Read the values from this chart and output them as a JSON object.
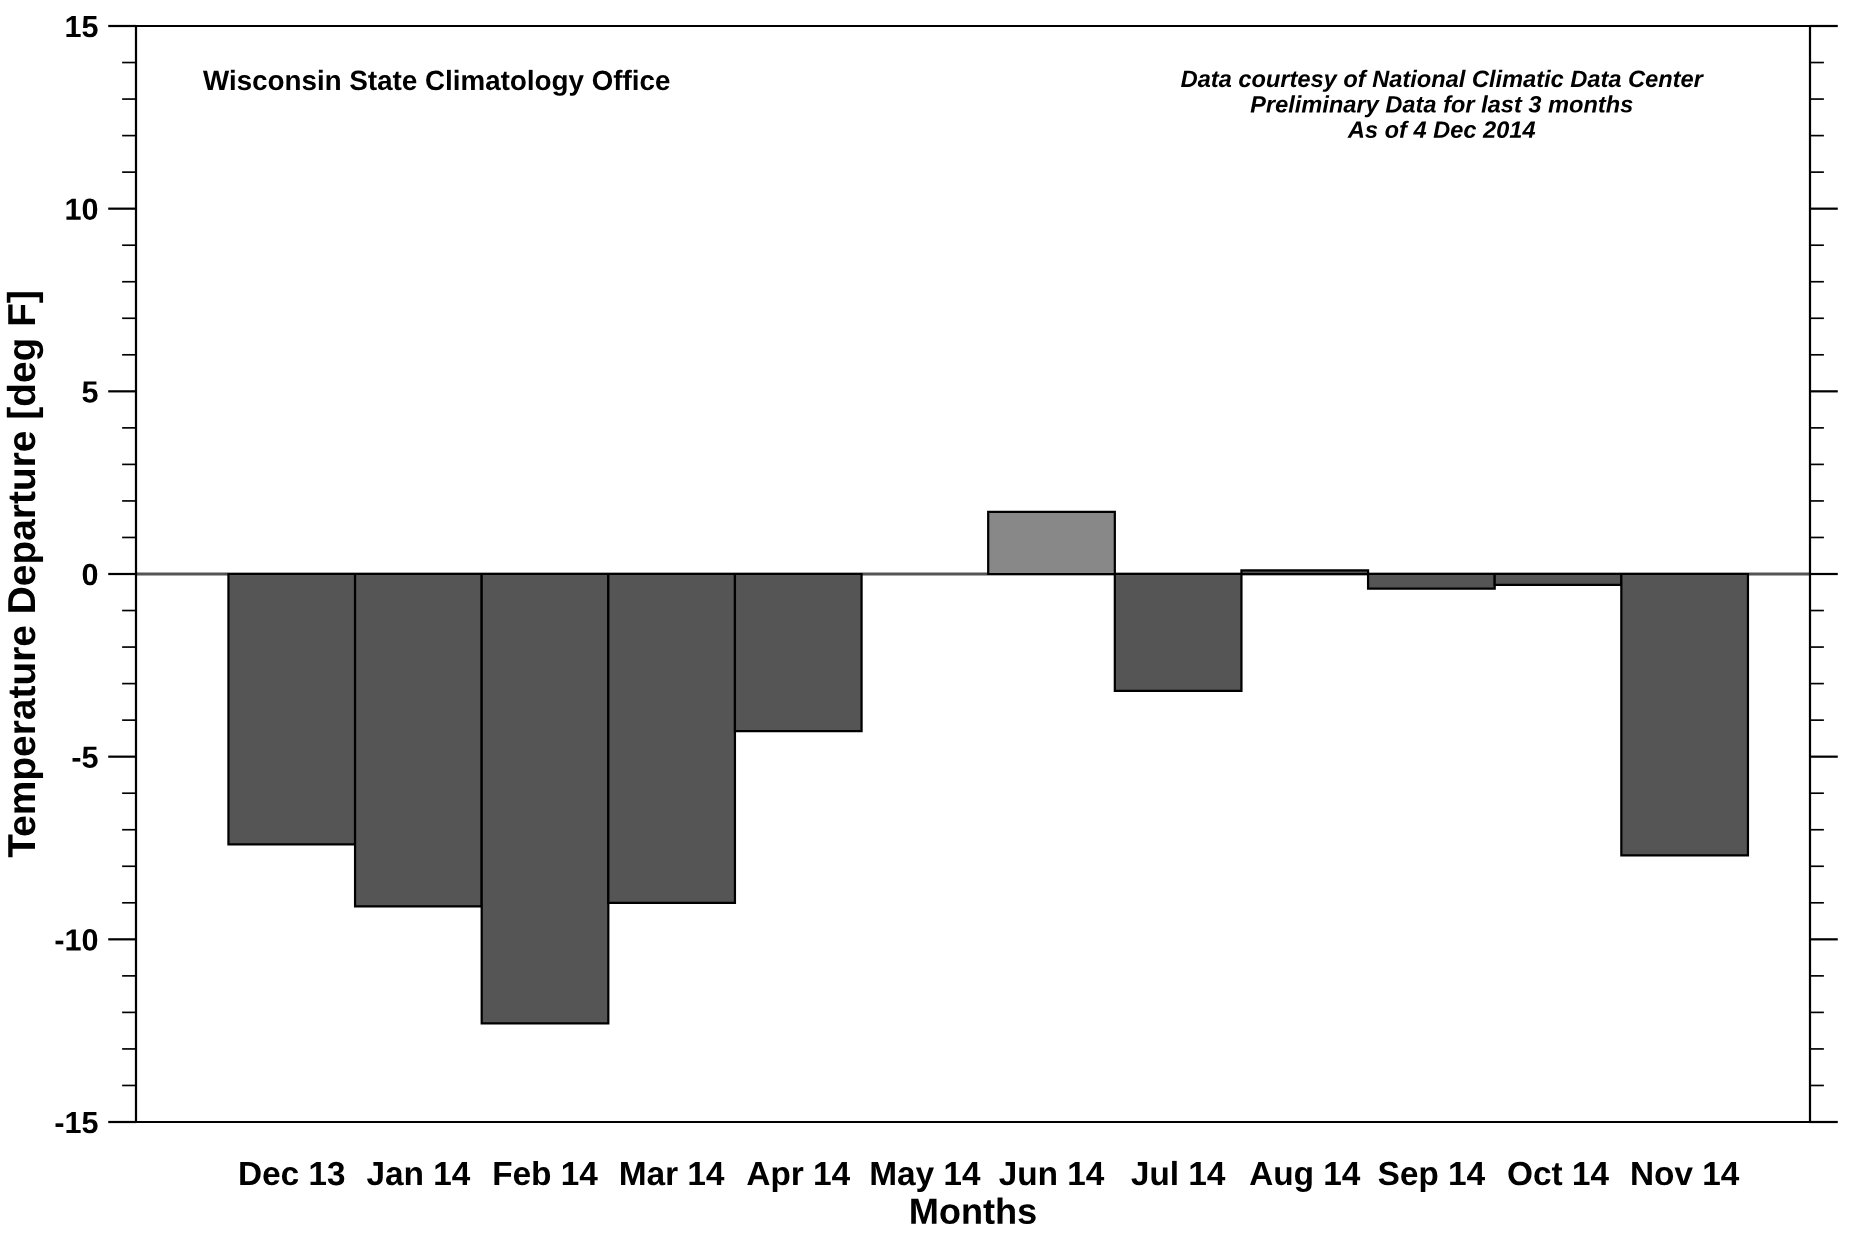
{
  "chart_data": {
    "type": "bar",
    "categories": [
      "Dec 13",
      "Jan 14",
      "Feb 14",
      "Mar 14",
      "Apr 14",
      "May 14",
      "Jun 14",
      "Jul 14",
      "Aug 14",
      "Sep 14",
      "Oct 14",
      "Nov 14"
    ],
    "values": [
      -7.4,
      -9.1,
      -12.3,
      -9.0,
      -4.3,
      null,
      1.7,
      -3.2,
      0.1,
      -0.4,
      -0.3,
      -7.7
    ],
    "colors": [
      "#555555",
      "#555555",
      "#555555",
      "#555555",
      "#555555",
      "#555555",
      "#888888",
      "#555555",
      "#555555",
      "#555555",
      "#555555",
      "#555555"
    ],
    "xlabel": "Months",
    "ylabel": "Temperature Departure [deg F]",
    "ylim": [
      -15,
      15
    ],
    "yticks": [
      -15,
      -10,
      -5,
      0,
      5,
      10,
      15
    ],
    "ref_lines": [
      {
        "axis": "y",
        "value": 0,
        "color": "#555555"
      }
    ],
    "annotations": [
      "Wisconsin State Climatology Office",
      "Data courtesy of National Climatic Data Center\nPreliminary Data for last 3 months\nAs of 4 Dec 2014"
    ],
    "grid": false,
    "legend": false
  }
}
